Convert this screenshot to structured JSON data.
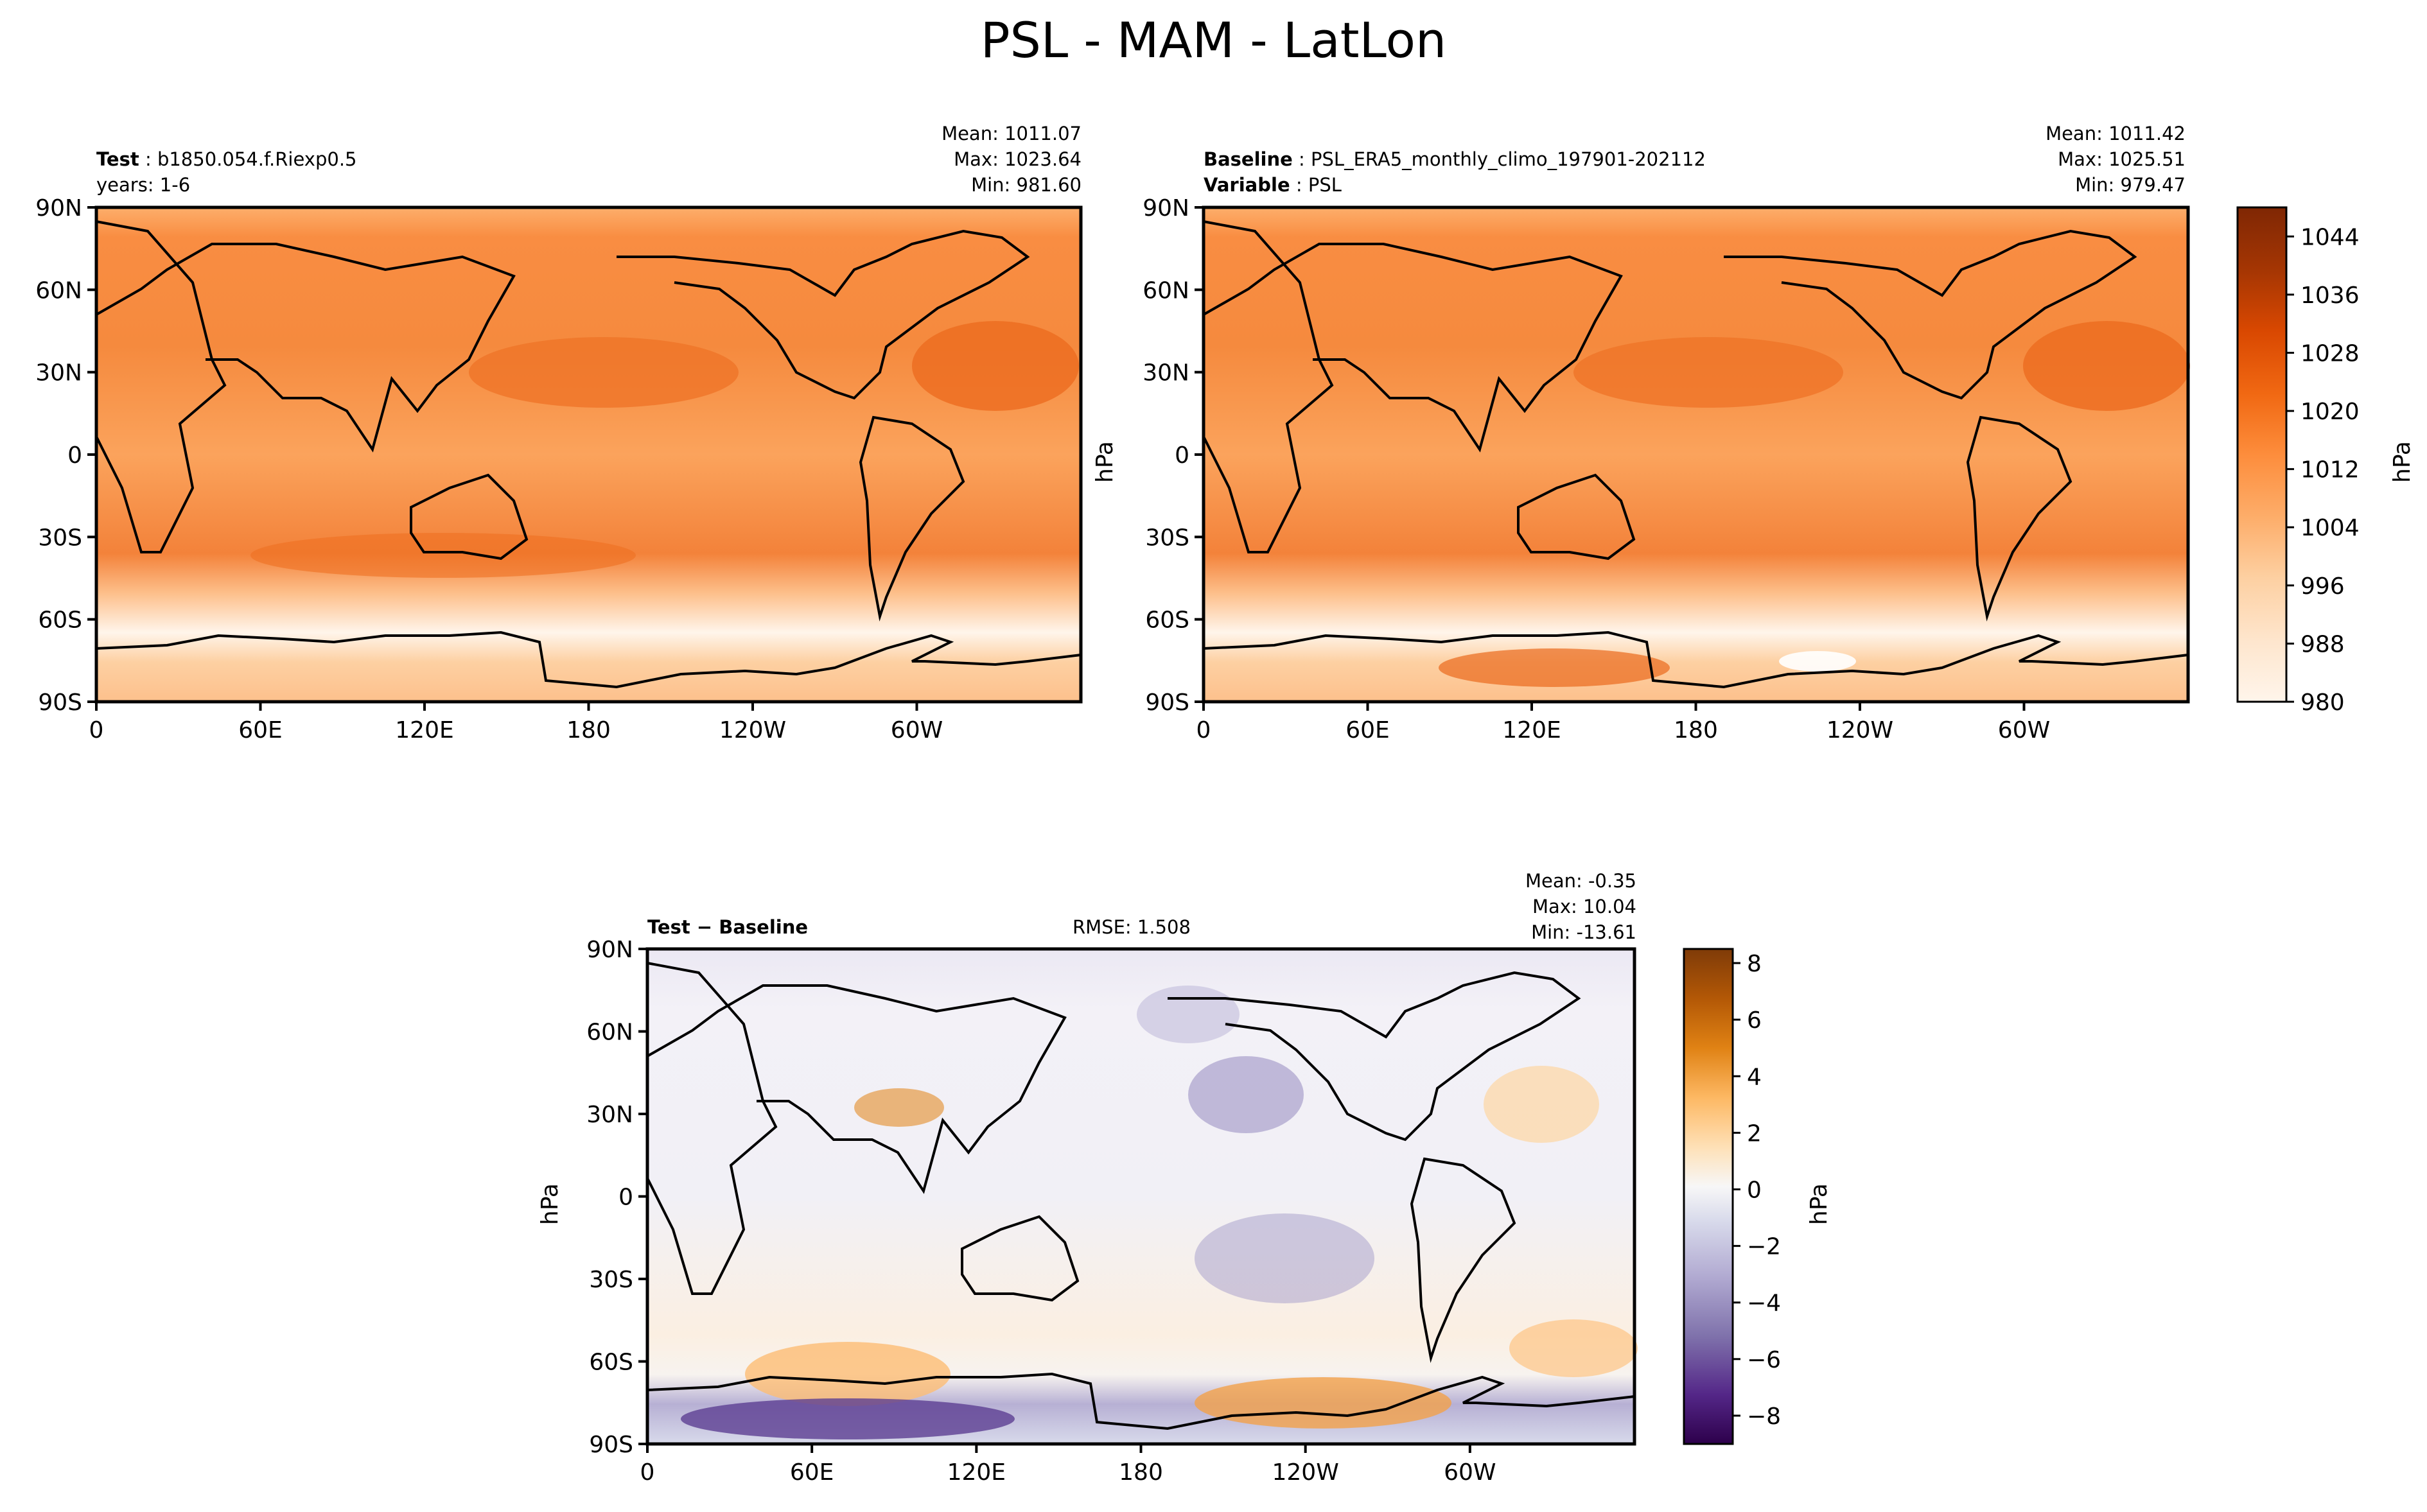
{
  "figure": {
    "title": "PSL - MAM - LatLon"
  },
  "chart_data": [
    {
      "type": "heatmap",
      "name": "test",
      "left_label_bold": "Test",
      "left_label_value": "b1850.054.f.Riexp0.5",
      "left_label_line2": "years: 1-6",
      "stats": [
        "Mean: 1011.07",
        "Max: 1023.64",
        "Min: 981.60"
      ],
      "mean": 1011.07,
      "max": 1023.64,
      "min": 981.6,
      "xticks": [
        "0",
        "60E",
        "120E",
        "180",
        "120W",
        "60W"
      ],
      "yticks": [
        "90N",
        "60N",
        "30N",
        "0",
        "30S",
        "60S",
        "90S"
      ],
      "units": "hPa"
    },
    {
      "type": "heatmap",
      "name": "baseline",
      "left_label_bold": "Baseline",
      "left_label_value": "PSL_ERA5_monthly_climo_197901-202112",
      "left_label_bold2": "Variable",
      "left_label_value2": "PSL",
      "stats": [
        "Mean: 1011.42",
        "Max: 1025.51",
        "Min: 979.47"
      ],
      "mean": 1011.42,
      "max": 1025.51,
      "min": 979.47,
      "xticks": [
        "0",
        "60E",
        "120E",
        "180",
        "120W",
        "60W"
      ],
      "yticks": [
        "90N",
        "60N",
        "30N",
        "0",
        "30S",
        "60S",
        "90S"
      ],
      "ylabel": "hPa",
      "colorbar": {
        "label": "hPa",
        "range": [
          980,
          1048
        ],
        "ticks": [
          "1044",
          "1036",
          "1028",
          "1020",
          "1012",
          "1004",
          "996",
          "988",
          "980"
        ]
      }
    },
    {
      "type": "heatmap",
      "name": "difference",
      "left_label_bold": "Test − Baseline",
      "rmse": "RMSE: 1.508",
      "stats": [
        "Mean: -0.35",
        "Max: 10.04",
        "Min: -13.61"
      ],
      "mean": -0.35,
      "max": 10.04,
      "min": -13.61,
      "xticks": [
        "0",
        "60E",
        "120E",
        "180",
        "120W",
        "60W"
      ],
      "yticks": [
        "90N",
        "60N",
        "30N",
        "0",
        "30S",
        "60S",
        "90S"
      ],
      "ylabel": "hPa",
      "colorbar": {
        "label": "hPa",
        "range": [
          -9,
          8.5
        ],
        "ticks": [
          "8",
          "6",
          "4",
          "2",
          "0",
          "−2",
          "−4",
          "−6",
          "−8"
        ]
      }
    }
  ],
  "colors": {
    "orange_scale": [
      "#fff5eb",
      "#fee6ce",
      "#fdd0a2",
      "#fdae6b",
      "#fd8d3c",
      "#f16913",
      "#d94801",
      "#a63603",
      "#7f2704"
    ],
    "diverging_scale": [
      "#2d004b",
      "#542788",
      "#8073ac",
      "#b2abd2",
      "#d8daeb",
      "#f7f7f7",
      "#fee0b6",
      "#fdb863",
      "#e08214",
      "#b35806",
      "#7f3b08"
    ]
  }
}
